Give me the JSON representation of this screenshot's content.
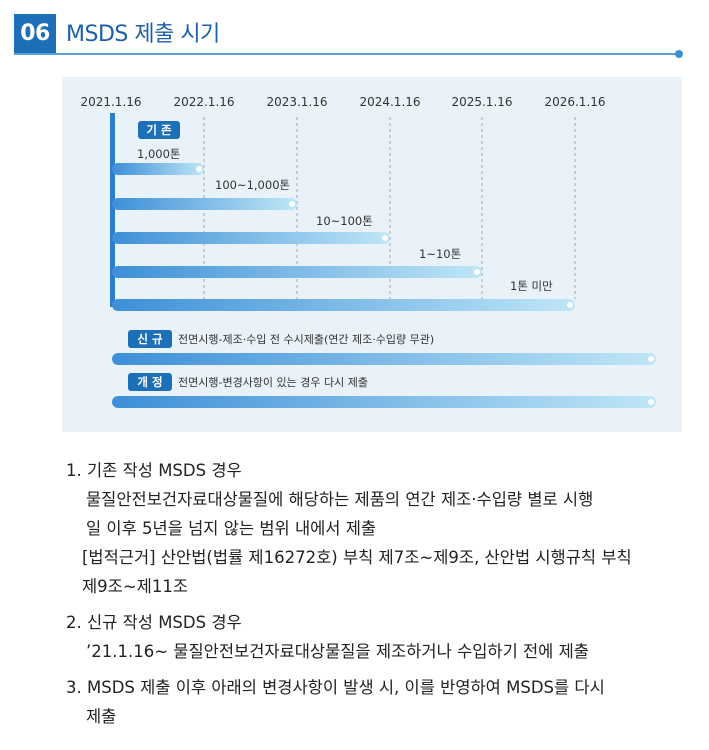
{
  "header": {
    "number": "06",
    "title": "MSDS 제출 시기"
  },
  "diagram": {
    "dates": [
      "2021.1.16",
      "2022.1.16",
      "2023.1.16",
      "2024.1.16",
      "2025.1.16",
      "2026.1.16"
    ],
    "existing_badge": "기 존",
    "tiers": [
      "1,000톤",
      "100~1,000톤",
      "10~100톤",
      "1~10톤",
      "1톤 미만"
    ],
    "new_badge": "신 규",
    "new_desc": "전면시행-제조·수입 전 수시제출(연간 제조·수입량 무관)",
    "revision_badge": "개 정",
    "revision_desc": "전면시행-변경사항이 있는 경우 다시 제출",
    "colors": {
      "badge": "#1d6fb8",
      "bar_start": "#3d8fd8",
      "bar_end": "#bfe6f6",
      "panel": "#eaf2f9"
    }
  },
  "list": {
    "item1_title": "1. 기존 작성 MSDS 경우",
    "item1_body_line1": "물질안전보건자료대상물질에 해당하는 제품의 연간 제조·수입량 별로 시행",
    "item1_body_line2": "일 이후 5년을 넘지 않는 범위 내에서 제출",
    "item1_ref_line1": "[법적근거] 산안법(법률 제16272호) 부칙 제7조~제9조, 산안법 시행규칙 부칙",
    "item1_ref_line2": "제9조~제11조",
    "item2_title": "2. 신규 작성 MSDS 경우",
    "item2_body": "’21.1.16~ 물질안전보건자료대상물질을 제조하거나 수입하기 전에 제출",
    "item3_title": "3. MSDS 제출 이후 아래의 변경사항이 발생 시, 이를 반영하여 MSDS를 다시",
    "item3_body": "제출"
  }
}
